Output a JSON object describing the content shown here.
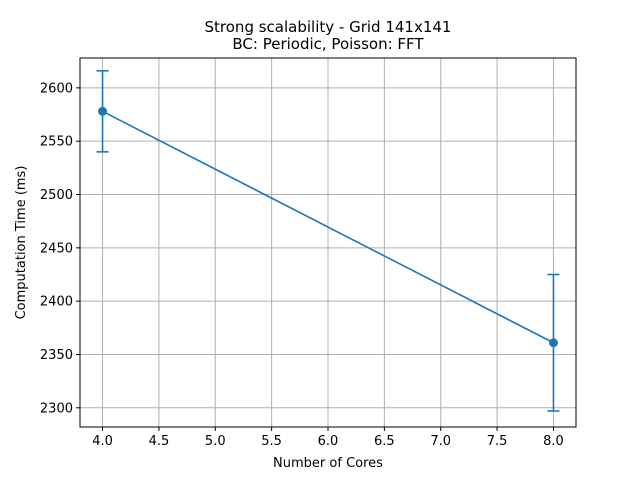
{
  "chart_data": {
    "type": "line",
    "title": [
      "Strong scalability - Grid 141x141",
      "BC: Periodic, Poisson: FFT"
    ],
    "xlabel": "Number of Cores",
    "ylabel": "Computation Time (ms)",
    "xlim": [
      3.8,
      8.2
    ],
    "ylim": [
      2282,
      2628
    ],
    "xticks": [
      4.0,
      4.5,
      5.0,
      5.5,
      6.0,
      6.5,
      7.0,
      7.5,
      8.0
    ],
    "xtick_labels": [
      "4.0",
      "4.5",
      "5.0",
      "5.5",
      "6.0",
      "6.5",
      "7.0",
      "7.5",
      "8.0"
    ],
    "yticks": [
      2300,
      2350,
      2400,
      2450,
      2500,
      2550,
      2600
    ],
    "ytick_labels": [
      "2300",
      "2350",
      "2400",
      "2450",
      "2500",
      "2550",
      "2600"
    ],
    "grid": true,
    "series": [
      {
        "x": [
          4,
          8
        ],
        "y": [
          2578,
          2361
        ],
        "yerr_low": [
          2540,
          2297
        ],
        "yerr_high": [
          2616,
          2425
        ],
        "color": "#1f77b4",
        "marker": "circle"
      }
    ]
  }
}
